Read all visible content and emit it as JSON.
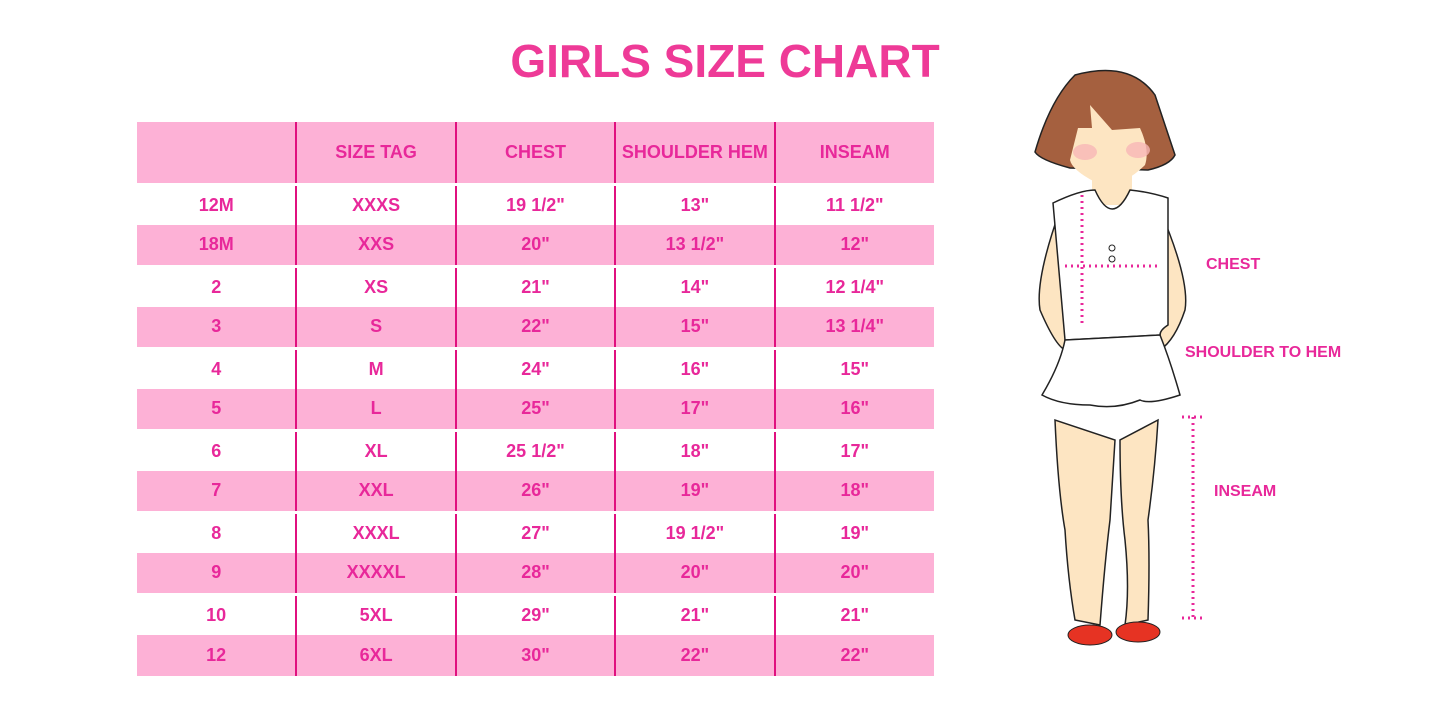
{
  "title": "GIRLS SIZE CHART",
  "table": {
    "headers": [
      "",
      "SIZE TAG",
      "CHEST",
      "SHOULDER HEM",
      "INSEAM"
    ],
    "rows": [
      [
        "12M",
        "XXXS",
        "19 1/2\"",
        "13\"",
        "11 1/2\""
      ],
      [
        "18M",
        "XXS",
        "20\"",
        "13 1/2\"",
        "12\""
      ],
      [
        "2",
        "XS",
        "21\"",
        "14\"",
        "12 1/4\""
      ],
      [
        "3",
        "S",
        "22\"",
        "15\"",
        "13 1/4\""
      ],
      [
        "4",
        "M",
        "24\"",
        "16\"",
        "15\""
      ],
      [
        "5",
        "L",
        "25\"",
        "17\"",
        "16\""
      ],
      [
        "6",
        "XL",
        "25 1/2\"",
        "18\"",
        "17\""
      ],
      [
        "7",
        "XXL",
        "26\"",
        "19\"",
        "18\""
      ],
      [
        "8",
        "XXXL",
        "27\"",
        "19 1/2\"",
        "19\""
      ],
      [
        "9",
        "XXXXL",
        "28\"",
        "20\"",
        "20\""
      ],
      [
        "10",
        "5XL",
        "29\"",
        "21\"",
        "21\""
      ],
      [
        "12",
        "6XL",
        "30\"",
        "22\"",
        "22\""
      ]
    ]
  },
  "figure": {
    "labels": {
      "chest": "CHEST",
      "shoulder": "SHOULDER TO HEM",
      "inseam": "INSEAM"
    }
  },
  "colors": {
    "accent": "#e8289a",
    "row_pink": "#fdb1d6",
    "divider": "#e0107f"
  }
}
